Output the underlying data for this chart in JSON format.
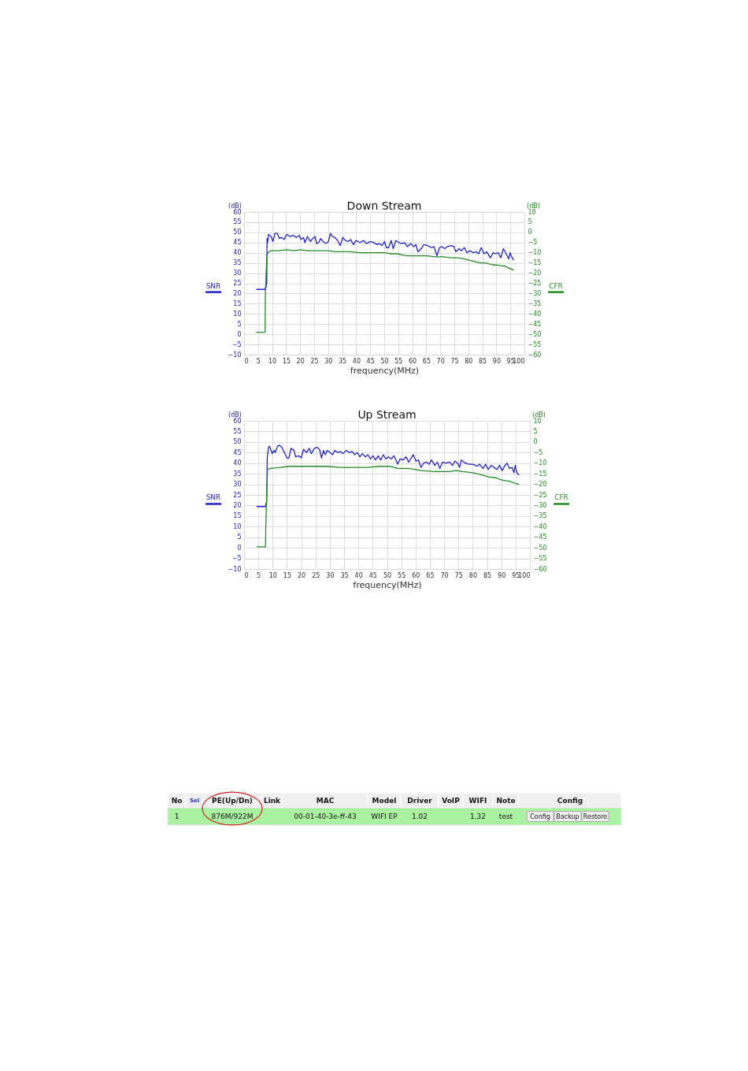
{
  "chart_data": [
    {
      "type": "line",
      "title": "Down Stream",
      "xlabel": "frequency(MHz)",
      "ylabel": "(dB)",
      "y2label": "(dB)",
      "xlim": [
        0,
        100
      ],
      "xticks": [
        0,
        5,
        10,
        15,
        20,
        25,
        30,
        35,
        40,
        45,
        50,
        55,
        60,
        65,
        70,
        75,
        80,
        85,
        90,
        95,
        100
      ],
      "ylim": [
        -10,
        60
      ],
      "yticks": [
        -10,
        -5,
        0,
        5,
        10,
        15,
        20,
        25,
        30,
        35,
        40,
        45,
        50,
        55,
        60
      ],
      "y2lim": [
        -60,
        10
      ],
      "y2ticks": [
        -60,
        -55,
        -50,
        -45,
        -40,
        -35,
        -30,
        -25,
        -20,
        -15,
        -10,
        -5,
        0,
        5,
        10
      ],
      "grid": true,
      "series": [
        {
          "name": "SNR",
          "color": "#2222cc",
          "x": [
            4.5,
            7.5,
            7.6,
            7.9,
            8.0,
            8.1,
            8.2,
            8.4,
            8.7,
            9.6,
            10.3,
            11,
            11.9,
            12.6,
            13.3,
            14.3,
            15.2,
            16.3,
            17.5,
            18.7,
            19.7,
            20.3,
            21.2,
            21.7,
            22.6,
            23.6,
            24.5,
            25.3,
            25.9,
            26.6,
            27.3,
            28.2,
            29.2,
            30.1,
            30.8,
            31.5,
            32.4,
            33.4,
            34.3,
            35.2,
            36.2,
            37.1,
            38,
            39,
            39.9,
            41.3,
            42.7,
            43.6,
            45,
            46.4,
            47.3,
            48.3,
            49.2,
            50.1,
            50.8,
            51.5,
            52.5,
            53.2,
            54.1,
            55.3,
            56.2,
            57.3,
            58.2,
            59.5,
            60.4,
            61.3,
            62,
            63.2,
            64.1,
            65.5,
            66.9,
            67.8,
            68.8,
            69.7,
            70.6,
            71.6,
            72.5,
            73.9,
            74.8,
            75.6,
            76.7,
            77.6,
            78.6,
            79.5,
            80.6,
            81.8,
            82.8,
            83.7,
            84.6,
            85.6,
            86.5,
            87.9,
            88.8,
            89.7,
            90.7,
            91.6,
            92.5,
            93.5,
            94.4,
            94.9,
            95.3,
            96.1
          ],
          "values": [
            22,
            22,
            23,
            23,
            32,
            25,
            47,
            45,
            49,
            48,
            45.5,
            49.5,
            49.5,
            47,
            47.5,
            46.5,
            49,
            48,
            48.5,
            47.5,
            48.5,
            46.5,
            47.5,
            45,
            48,
            45.5,
            47,
            48,
            44.5,
            45,
            47,
            45.5,
            44.5,
            45.5,
            49.5,
            48,
            47.5,
            46,
            43.5,
            47.5,
            46,
            45.5,
            46.5,
            44,
            46,
            45,
            46,
            44.5,
            45.5,
            45,
            44,
            44.5,
            43.5,
            45.5,
            42.5,
            42.5,
            46,
            42,
            46,
            45,
            44.5,
            45,
            43,
            44.5,
            43,
            44,
            40.5,
            42,
            44,
            43.5,
            42.5,
            43,
            38.5,
            42.5,
            43,
            42,
            43,
            43.5,
            43,
            40.5,
            42,
            41,
            42.5,
            40,
            41,
            40,
            40.5,
            39.5,
            42.5,
            39.5,
            40.5,
            37.5,
            40,
            39.5,
            40,
            37.5,
            42,
            39.5,
            37,
            40,
            38.5,
            36.5
          ]
        },
        {
          "name": "CFR",
          "color": "#238b23",
          "axis": "y2",
          "x": [
            4.5,
            7.5,
            7.6,
            7.9,
            8.1,
            8.4,
            9.6,
            12.4,
            15.2,
            18,
            20,
            22.6,
            26.4,
            30.1,
            32.4,
            35.2,
            37.6,
            41.3,
            45,
            46.9,
            50.1,
            52.5,
            55,
            56.2,
            58.1,
            60,
            61.8,
            63.9,
            65,
            68.3,
            70,
            71.1,
            73.9,
            75,
            75.8,
            78.6,
            80,
            81.4,
            84.2,
            85,
            86,
            88.8,
            90,
            92.5,
            93,
            94.4,
            96.1
          ],
          "values": [
            -49,
            -49,
            -30,
            -20,
            -12,
            -10,
            -9,
            -9,
            -8.5,
            -9,
            -8.5,
            -9,
            -9,
            -9,
            -9.5,
            -9.5,
            -9.5,
            -10,
            -10,
            -10,
            -10,
            -10.5,
            -10.5,
            -11,
            -11.5,
            -11.5,
            -11.5,
            -11.5,
            -11.5,
            -12,
            -12,
            -12,
            -12.5,
            -12.5,
            -12.5,
            -13,
            -13.5,
            -14,
            -15,
            -15,
            -15,
            -16,
            -16,
            -16.5,
            -16.5,
            -17.5,
            -18.5
          ]
        }
      ]
    },
    {
      "type": "line",
      "title": "Up Stream",
      "xlabel": "frequency(MHz)",
      "ylabel": "(dB)",
      "y2label": "(dB)",
      "xlim": [
        0,
        100
      ],
      "xticks": [
        0,
        5,
        10,
        15,
        20,
        25,
        30,
        35,
        40,
        45,
        50,
        55,
        60,
        65,
        70,
        75,
        80,
        85,
        90,
        95,
        100
      ],
      "ylim": [
        -10,
        60
      ],
      "yticks": [
        -10,
        -5,
        0,
        5,
        10,
        15,
        20,
        25,
        30,
        35,
        40,
        45,
        50,
        55,
        60
      ],
      "y2lim": [
        -60,
        10
      ],
      "y2ticks": [
        -60,
        -55,
        -50,
        -45,
        -40,
        -35,
        -30,
        -25,
        -20,
        -15,
        -10,
        -5,
        0,
        5,
        10
      ],
      "grid": true,
      "series": [
        {
          "name": "SNR",
          "color": "#2222cc",
          "x": [
            4.5,
            7.5,
            7.6,
            7.9,
            8.0,
            8.1,
            8.4,
            8.7,
            9.1,
            9.8,
            10.5,
            10.9,
            11.7,
            12.3,
            13.2,
            14.1,
            15,
            15.7,
            16.4,
            17.5,
            18,
            19.1,
            20,
            20.8,
            21.9,
            22.8,
            23.5,
            24.6,
            25.5,
            26.4,
            27.1,
            27.8,
            28.4,
            29.1,
            30.1,
            31,
            31.7,
            32.8,
            33.7,
            34.6,
            35.7,
            36.9,
            37.8,
            38.7,
            39.6,
            40.5,
            41.4,
            42.4,
            43.3,
            44.2,
            45.1,
            46,
            46.9,
            47.8,
            48.7,
            49.6,
            50.5,
            51.5,
            52.4,
            53.3,
            53.7,
            54.6,
            55.7,
            56.6,
            57.6,
            58.5,
            59.2,
            60.1,
            61,
            61.9,
            62.8,
            63.8,
            64.7,
            65.6,
            66.7,
            67.6,
            68.5,
            69.4,
            70.6,
            71.9,
            72.9,
            73.8,
            74.7,
            75.4,
            76,
            77.4,
            78.8,
            80.1,
            81.5,
            82.4,
            83.6,
            84.5,
            85.4,
            86.5,
            87.4,
            88.5,
            89.4,
            90.3,
            91.3,
            92,
            92.9,
            93.8,
            94.4,
            94.9,
            95.4,
            96.1
          ],
          "values": [
            19.5,
            19.5,
            21,
            21,
            29,
            42.5,
            46,
            48,
            47.5,
            44.5,
            46,
            45,
            48,
            48.5,
            47.5,
            45,
            42.5,
            42.5,
            47,
            46,
            43,
            43.5,
            42.5,
            46.5,
            45,
            47,
            44.5,
            47,
            47.5,
            46.5,
            42.5,
            46,
            44,
            46,
            45,
            44,
            46,
            45,
            45.5,
            44.5,
            46,
            45,
            45.5,
            44,
            45,
            43,
            44.5,
            43,
            44,
            42,
            43.5,
            41.5,
            43.5,
            41.5,
            44,
            42,
            43,
            42,
            43.5,
            41,
            39.5,
            42,
            41.5,
            43,
            40.5,
            42.5,
            44,
            41,
            41.5,
            38,
            40,
            40.5,
            39.5,
            41.5,
            39,
            40.5,
            37.5,
            40.5,
            40,
            40.5,
            39,
            41,
            40,
            38,
            41.5,
            40,
            39.5,
            39.5,
            38.5,
            39.5,
            37.5,
            39.5,
            37,
            39,
            38,
            37,
            39,
            36.5,
            39,
            40,
            37.5,
            38,
            35.5,
            39,
            35.5,
            34.5
          ]
        },
        {
          "name": "CFR",
          "color": "#238b23",
          "axis": "y2",
          "x": [
            4.5,
            7.5,
            7.6,
            7.8,
            8.0,
            8.2,
            9.1,
            12.8,
            15.5,
            20,
            24.6,
            29.1,
            33.7,
            38.3,
            42.8,
            47.4,
            51,
            53.7,
            57.4,
            60.1,
            61.9,
            66.5,
            69.2,
            71.9,
            74.2,
            76.5,
            80.1,
            82.9,
            85.6,
            88.3,
            90.2,
            92.9,
            94.7,
            96.1
          ],
          "values": [
            -49.5,
            -49.5,
            -40,
            -30,
            -20,
            -13,
            -12.5,
            -12,
            -11.5,
            -11.5,
            -11.5,
            -11.5,
            -12,
            -12,
            -12,
            -11.5,
            -11.5,
            -12.5,
            -12.5,
            -13,
            -13.5,
            -14,
            -14,
            -14,
            -13.5,
            -14,
            -14.5,
            -15.5,
            -16.5,
            -17,
            -18,
            -18.5,
            -19.5,
            -20
          ]
        }
      ]
    },
    {
      "type": "other",
      "categories": [
        "No",
        "Sel",
        "PE(Up/Dn)",
        "Link",
        "MAC",
        "Model",
        "Driver",
        "VoIP",
        "WIFI",
        "Note",
        "Config"
      ],
      "annotations": [
        "1",
        "876M/922M",
        "00-01-40-3e-ff-43",
        "WIFI EP",
        "1.02",
        "1.32",
        "test",
        "Config",
        "Backup",
        "Restore"
      ]
    }
  ]
}
